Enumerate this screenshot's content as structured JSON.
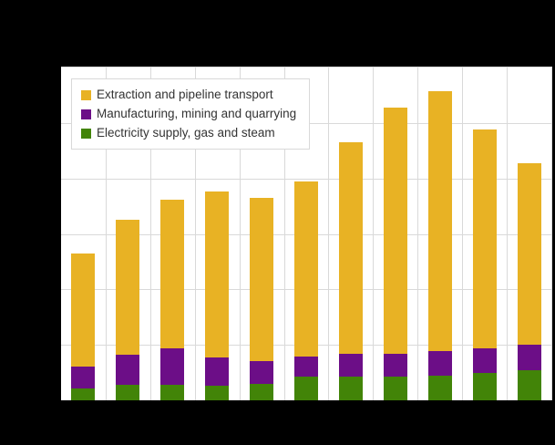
{
  "window": {
    "background_color": "#000000",
    "plot_background_color": "#ffffff",
    "gridline_color": "#d9d9d9",
    "legend_text_color": "#333333"
  },
  "legend": {
    "position": "top-left-inside",
    "items": [
      {
        "key": "extraction",
        "label": "Extraction and pipeline transport",
        "color": "#e8b224"
      },
      {
        "key": "manufacturing",
        "label": "Manufacturing, mining and quarrying",
        "color": "#6c0e87"
      },
      {
        "key": "electricity",
        "label": "Electricity supply, gas and steam",
        "color": "#428408"
      }
    ]
  },
  "chart_data": {
    "type": "bar",
    "stacked": true,
    "n_bars": 11,
    "x_tick_labels_visible": false,
    "y_tick_labels_visible": false,
    "title_visible": false,
    "grid": true,
    "ylim": [
      0,
      60
    ],
    "y_gridline_step": 10,
    "legend_position": "top-left-inside",
    "series_bottom_to_top": [
      {
        "key": "electricity",
        "name": "Electricity supply, gas and steam",
        "color": "#428408",
        "values": [
          2.1,
          2.8,
          2.8,
          2.7,
          3.0,
          4.2,
          4.2,
          4.2,
          4.5,
          4.9,
          5.5
        ]
      },
      {
        "key": "manufacturing",
        "name": "Manufacturing, mining and quarrying",
        "color": "#6c0e87",
        "values": [
          4.0,
          5.4,
          6.6,
          5.1,
          4.1,
          3.7,
          4.2,
          4.2,
          4.4,
          4.4,
          4.5
        ]
      },
      {
        "key": "extraction",
        "name": "Extraction and pipeline transport",
        "color": "#e8b224",
        "values": [
          20.4,
          24.4,
          26.7,
          29.8,
          29.4,
          31.6,
          38.1,
          44.3,
          46.9,
          39.6,
          32.7
        ]
      }
    ]
  }
}
